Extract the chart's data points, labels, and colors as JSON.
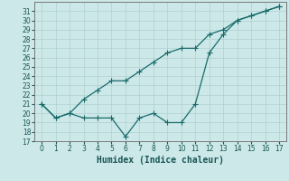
{
  "xlabel": "Humidex (Indice chaleur)",
  "x": [
    0,
    1,
    2,
    3,
    4,
    5,
    6,
    7,
    8,
    9,
    10,
    11,
    12,
    13,
    14,
    15,
    16,
    17
  ],
  "line1_noisy": [
    21,
    19.5,
    20.0,
    19.5,
    19.5,
    19.5,
    17.5,
    19.5,
    20.0,
    19.0,
    19.0,
    21.0,
    26.5,
    28.5,
    30.0,
    30.5,
    31.0,
    31.5
  ],
  "line2_smooth": [
    21,
    19.5,
    20.0,
    21.5,
    22.5,
    23.5,
    23.5,
    24.5,
    25.5,
    26.5,
    27.0,
    27.0,
    28.5,
    29.0,
    30.0,
    30.5,
    31.0,
    31.5
  ],
  "line_color": "#1a6b6b",
  "bg_color": "#cce8e8",
  "grid_major_color": "#b0d0d0",
  "grid_minor_color": "#b0d0d0",
  "ylim": [
    17,
    32
  ],
  "xlim": [
    -0.5,
    17.5
  ],
  "yticks": [
    17,
    18,
    19,
    20,
    21,
    22,
    23,
    24,
    25,
    26,
    27,
    28,
    29,
    30,
    31
  ],
  "xticks": [
    0,
    1,
    2,
    3,
    4,
    5,
    6,
    7,
    8,
    9,
    10,
    11,
    12,
    13,
    14,
    15,
    16,
    17
  ],
  "tick_fontsize": 5.5,
  "xlabel_fontsize": 7
}
